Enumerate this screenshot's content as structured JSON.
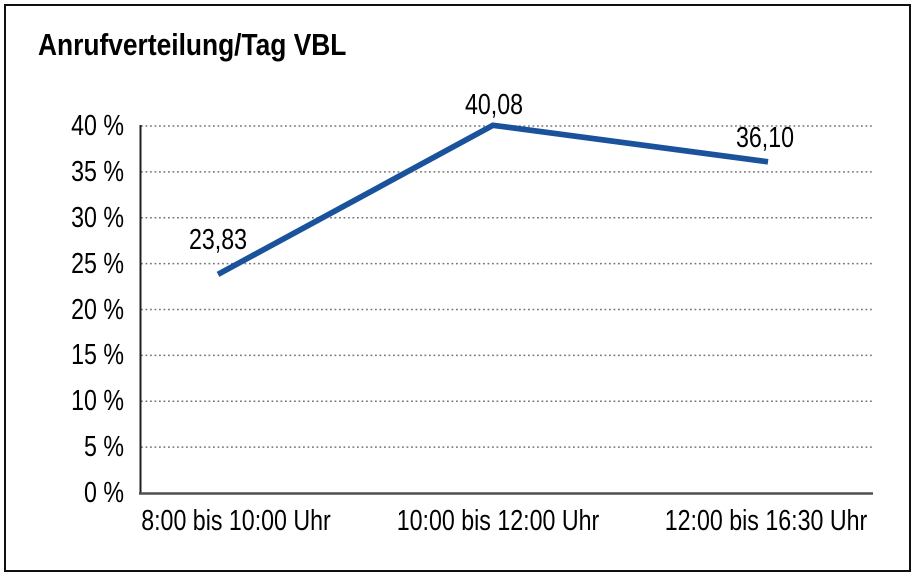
{
  "title": "Anrufverteilung/Tag VBL",
  "frame": {
    "border_color": "#101010",
    "background": "#ffffff"
  },
  "chart_data": {
    "type": "line",
    "title": "Anrufverteilung/Tag VBL",
    "categories": [
      "8:00 bis 10:00 Uhr",
      "10:00 bis 12:00 Uhr",
      "12:00 bis 16:30 Uhr"
    ],
    "values": [
      23.83,
      40.08,
      36.1
    ],
    "point_labels": [
      "23,83",
      "40,08",
      "36,10"
    ],
    "xlabel": "",
    "ylabel": "",
    "ylim": [
      0,
      40
    ],
    "y_axis": {
      "min": 0,
      "max": 40,
      "step": 5,
      "tick_labels": [
        "0 %",
        "5 %",
        "10 %",
        "15 %",
        "20 %",
        "25 %",
        "30 %",
        "35 %",
        "40 %"
      ]
    },
    "grid": "horizontal-dotted",
    "legend": "none",
    "colors": {
      "line": "#1A529B",
      "text": "#000000",
      "grid": "#757575",
      "y_axis_line": "#1f1f1f",
      "x_axis_line": "#4e4e4e"
    }
  }
}
